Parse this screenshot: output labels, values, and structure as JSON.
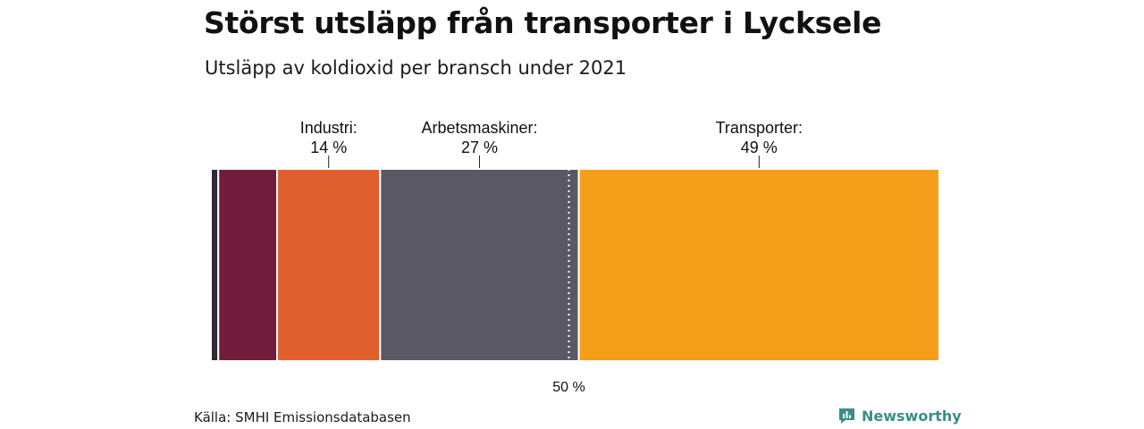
{
  "header": {
    "title": "Störst utsläpp från transporter i Lycksele",
    "subtitle": "Utsläpp av koldioxid per bransch under 2021"
  },
  "footer": {
    "source": "Källa: SMHI Emissionsdatabasen",
    "brand": "Newsworthy",
    "brand_icon": "newsworthy-logo-icon"
  },
  "chart_data": {
    "type": "bar",
    "orientation": "horizontal-stacked-100",
    "title": "Störst utsläpp från transporter i Lycksele",
    "subtitle": "Utsläpp av koldioxid per bransch under 2021",
    "unit": "%",
    "xlim": [
      0,
      100
    ],
    "reference_line": {
      "value": 50,
      "label": "50 %"
    },
    "segments": [
      {
        "name": "",
        "value": 1,
        "color": "#2f2a35",
        "label": "",
        "value_label": ""
      },
      {
        "name": "",
        "value": 8,
        "color": "#721c3b",
        "label": "",
        "value_label": ""
      },
      {
        "name": "Industri",
        "value": 14,
        "color": "#e05f2e",
        "label": "Industri:",
        "value_label": "14 %"
      },
      {
        "name": "Arbetsmaskiner",
        "value": 27,
        "color": "#5a5865",
        "label": "Arbetsmaskiner:",
        "value_label": "27 %"
      },
      {
        "name": "Transporter",
        "value": 49,
        "color": "#f59e1a",
        "label": "Transporter:",
        "value_label": "49 %"
      }
    ]
  }
}
